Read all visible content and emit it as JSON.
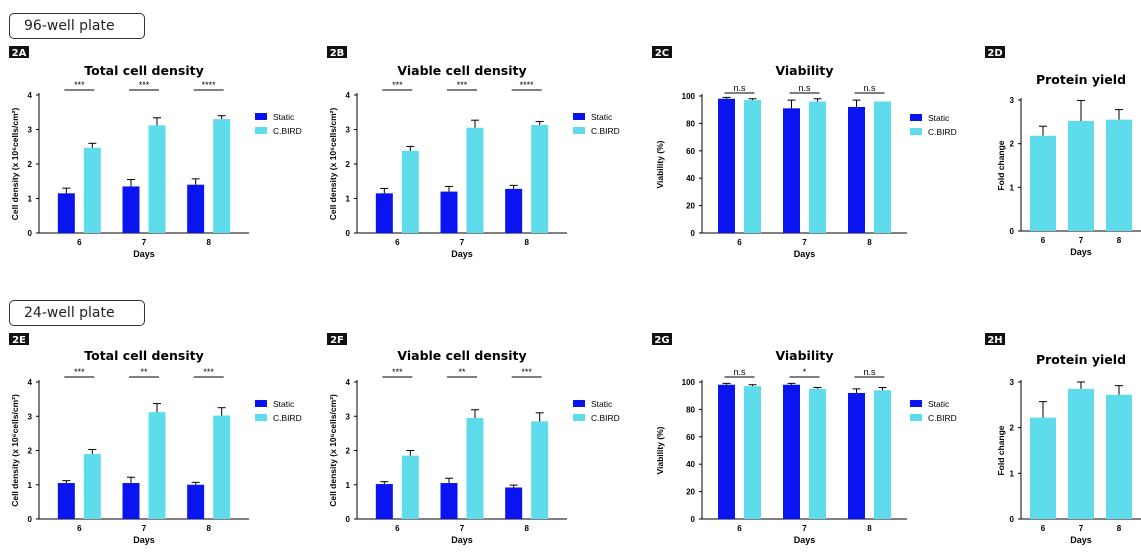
{
  "sections": [
    {
      "label": "96-well plate"
    },
    {
      "label": "24-well plate"
    }
  ],
  "colors": {
    "static": "#0a14f0",
    "cbird": "#5fdcec"
  },
  "legend": [
    "Static",
    "C.BIRD"
  ],
  "chart_data": [
    {
      "id": "2A",
      "type": "bar",
      "title": "Total cell density",
      "xlabel": "Days",
      "ylabel": "Cell density (x 10⁶cells/cm²)",
      "categories": [
        "6",
        "7",
        "8"
      ],
      "ylim": [
        0,
        4
      ],
      "yticks": [
        0,
        1,
        2,
        3,
        4
      ],
      "legend": "right",
      "series": [
        {
          "name": "Static",
          "values": [
            1.15,
            1.35,
            1.4
          ],
          "errors": [
            0.15,
            0.2,
            0.17
          ]
        },
        {
          "name": "C.BIRD",
          "values": [
            2.47,
            3.12,
            3.3
          ],
          "errors": [
            0.13,
            0.22,
            0.1
          ]
        }
      ],
      "significance": [
        "***",
        "***",
        "****"
      ]
    },
    {
      "id": "2B",
      "type": "bar",
      "title": "Viable cell density",
      "xlabel": "Days",
      "ylabel": "Cell density (x 10⁶cells/cm²)",
      "categories": [
        "6",
        "7",
        "8"
      ],
      "ylim": [
        0,
        4
      ],
      "yticks": [
        0,
        1,
        2,
        3,
        4
      ],
      "legend": "right",
      "series": [
        {
          "name": "Static",
          "values": [
            1.15,
            1.2,
            1.28
          ],
          "errors": [
            0.14,
            0.15,
            0.1
          ]
        },
        {
          "name": "C.BIRD",
          "values": [
            2.38,
            3.05,
            3.13
          ],
          "errors": [
            0.13,
            0.22,
            0.1
          ]
        }
      ],
      "significance": [
        "***",
        "***",
        "****"
      ]
    },
    {
      "id": "2C",
      "type": "bar",
      "title": "Viability",
      "xlabel": "Days",
      "ylabel": "Viability (%)",
      "categories": [
        "6",
        "7",
        "8"
      ],
      "ylim": [
        0,
        100
      ],
      "yticks": [
        0,
        20,
        40,
        60,
        80,
        100
      ],
      "legend": "right",
      "series": [
        {
          "name": "Static",
          "values": [
            98,
            91,
            92
          ],
          "errors": [
            1,
            6,
            5
          ]
        },
        {
          "name": "C.BIRD",
          "values": [
            97,
            96,
            96
          ],
          "errors": [
            1,
            2,
            0
          ]
        }
      ],
      "significance": [
        "n.s",
        "n.s",
        "n.s"
      ]
    },
    {
      "id": "2D",
      "type": "bar",
      "title": "Protein yield",
      "xlabel": "Days",
      "ylabel": "Fold change",
      "categories": [
        "6",
        "7",
        "8"
      ],
      "ylim": [
        0,
        3
      ],
      "yticks": [
        0,
        1,
        2,
        3
      ],
      "series": [
        {
          "name": "C.BIRD",
          "values": [
            2.18,
            2.52,
            2.55
          ],
          "errors": [
            0.22,
            0.47,
            0.23
          ]
        }
      ],
      "significance": []
    },
    {
      "id": "2E",
      "type": "bar",
      "title": "Total cell density",
      "xlabel": "Days",
      "ylabel": "Cell density (x 10⁶cells/cm²)",
      "categories": [
        "6",
        "7",
        "8"
      ],
      "ylim": [
        0,
        4
      ],
      "yticks": [
        0,
        1,
        2,
        3,
        4
      ],
      "legend": "right",
      "series": [
        {
          "name": "Static",
          "values": [
            1.05,
            1.05,
            1.0
          ],
          "errors": [
            0.07,
            0.17,
            0.07
          ]
        },
        {
          "name": "C.BIRD",
          "values": [
            1.9,
            3.12,
            3.02
          ],
          "errors": [
            0.13,
            0.25,
            0.23
          ]
        }
      ],
      "significance": [
        "***",
        "**",
        "***"
      ]
    },
    {
      "id": "2F",
      "type": "bar",
      "title": "Viable cell density",
      "xlabel": "Days",
      "ylabel": "Cell density (x 10⁶cells/cm²)",
      "categories": [
        "6",
        "7",
        "8"
      ],
      "ylim": [
        0,
        4
      ],
      "yticks": [
        0,
        1,
        2,
        3,
        4
      ],
      "legend": "right",
      "series": [
        {
          "name": "Static",
          "values": [
            1.02,
            1.05,
            0.92
          ],
          "errors": [
            0.07,
            0.14,
            0.07
          ]
        },
        {
          "name": "C.BIRD",
          "values": [
            1.85,
            2.95,
            2.85
          ],
          "errors": [
            0.15,
            0.24,
            0.25
          ]
        }
      ],
      "significance": [
        "***",
        "**",
        "***"
      ]
    },
    {
      "id": "2G",
      "type": "bar",
      "title": "Viability",
      "xlabel": "Days",
      "ylabel": "Viability (%)",
      "categories": [
        "6",
        "7",
        "8"
      ],
      "ylim": [
        0,
        100
      ],
      "yticks": [
        0,
        20,
        40,
        60,
        80,
        100
      ],
      "legend": "right",
      "series": [
        {
          "name": "Static",
          "values": [
            98,
            98,
            92
          ],
          "errors": [
            1,
            1,
            3
          ]
        },
        {
          "name": "C.BIRD",
          "values": [
            97,
            95,
            94
          ],
          "errors": [
            1,
            1,
            2
          ]
        }
      ],
      "significance": [
        "n.s",
        "*",
        "n.s"
      ]
    },
    {
      "id": "2H",
      "type": "bar",
      "title": "Protein yield",
      "xlabel": "Days",
      "ylabel": "Fold change",
      "categories": [
        "6",
        "7",
        "8"
      ],
      "ylim": [
        0,
        3
      ],
      "yticks": [
        0,
        1,
        2,
        3
      ],
      "series": [
        {
          "name": "C.BIRD",
          "values": [
            2.22,
            2.85,
            2.72
          ],
          "errors": [
            0.35,
            0.15,
            0.2
          ]
        }
      ],
      "significance": []
    }
  ]
}
